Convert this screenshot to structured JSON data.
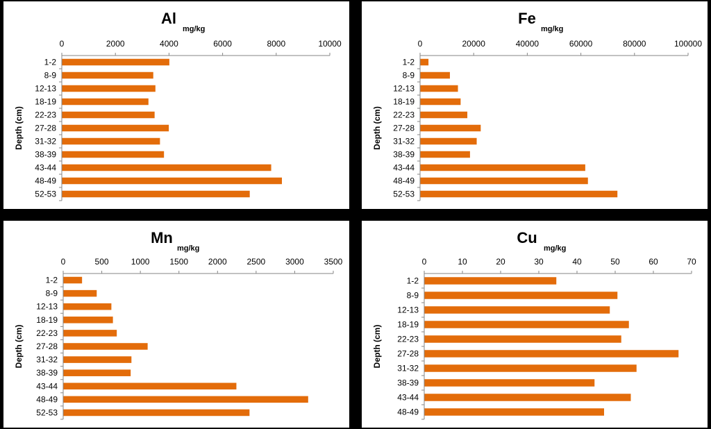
{
  "chart_data": [
    {
      "type": "bar",
      "title": "Al",
      "subtitle": "mg/kg",
      "ylabel": "Depth (cm)",
      "xlim": [
        0,
        10000
      ],
      "xticks": [
        "0",
        "2000",
        "4000",
        "6000",
        "8000",
        "10000"
      ],
      "categories": [
        "1-2",
        "8-9",
        "12-13",
        "18-19",
        "22-23",
        "27-28",
        "31-32",
        "38-39",
        "43-44",
        "48-49",
        "52-53"
      ],
      "values": [
        4000,
        3400,
        3480,
        3220,
        3450,
        3980,
        3650,
        3800,
        7800,
        8200,
        7000
      ]
    },
    {
      "type": "bar",
      "title": "Fe",
      "subtitle": "mg/kg",
      "ylabel": "Depth (cm)",
      "xlim": [
        0,
        100000
      ],
      "xticks": [
        "0",
        "20000",
        "40000",
        "60000",
        "80000",
        "100000"
      ],
      "categories": [
        "1-2",
        "8-9",
        "12-13",
        "18-19",
        "22-23",
        "27-28",
        "31-32",
        "38-39",
        "43-44",
        "48-49",
        "52-53"
      ],
      "values": [
        3000,
        11000,
        14000,
        15000,
        17500,
        22500,
        21000,
        18500,
        61500,
        62500,
        73500
      ]
    },
    {
      "type": "bar",
      "title": "Mn",
      "subtitle": "mg/kg",
      "ylabel": "Depth (cm)",
      "xlim": [
        0,
        3500
      ],
      "xticks": [
        "0",
        "500",
        "1000",
        "1500",
        "2000",
        "2500",
        "3000",
        "3500"
      ],
      "categories": [
        "1-2",
        "8-9",
        "12-13",
        "18-19",
        "22-23",
        "27-28",
        "31-32",
        "38-39",
        "43-44",
        "48-49",
        "52-53"
      ],
      "values": [
        240,
        430,
        620,
        640,
        690,
        1090,
        880,
        870,
        2240,
        3170,
        2410
      ]
    },
    {
      "type": "bar",
      "title": "Cu",
      "subtitle": "mg/kg",
      "ylabel": "Depth (cm)",
      "xlim": [
        0,
        70
      ],
      "xticks": [
        "0",
        "10",
        "20",
        "30",
        "40",
        "50",
        "60",
        "70"
      ],
      "categories": [
        "1-2",
        "8-9",
        "12-13",
        "18-19",
        "22-23",
        "27-28",
        "31-32",
        "38-39",
        "43-44",
        "48-49"
      ],
      "values": [
        34.5,
        50.5,
        48.5,
        53.5,
        51.5,
        66.5,
        55.5,
        44.5,
        54,
        47
      ]
    }
  ],
  "colors": {
    "bar": "#E36C0A",
    "frame": "#000000",
    "axis": "#868686"
  }
}
